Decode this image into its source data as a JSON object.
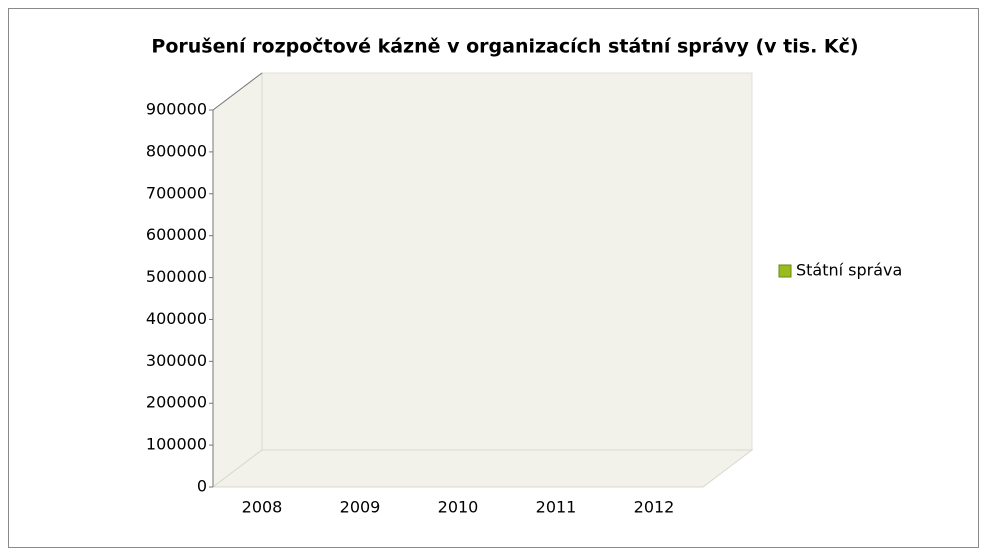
{
  "chart_data": {
    "type": "bar3d",
    "title": "Porušení rozpočtové kázně v organizacích státní správy (v tis. Kč)",
    "categories": [
      "2008",
      "2009",
      "2010",
      "2011",
      "2012"
    ],
    "series": [
      {
        "name": "Státní správa",
        "color": "#9bbb1e",
        "values": [
          0,
          0,
          0,
          0,
          0
        ]
      }
    ],
    "ylim": [
      0,
      900000
    ],
    "yticks": [
      0,
      100000,
      200000,
      300000,
      400000,
      500000,
      600000,
      700000,
      800000,
      900000
    ],
    "grid": false,
    "legend": "right"
  }
}
